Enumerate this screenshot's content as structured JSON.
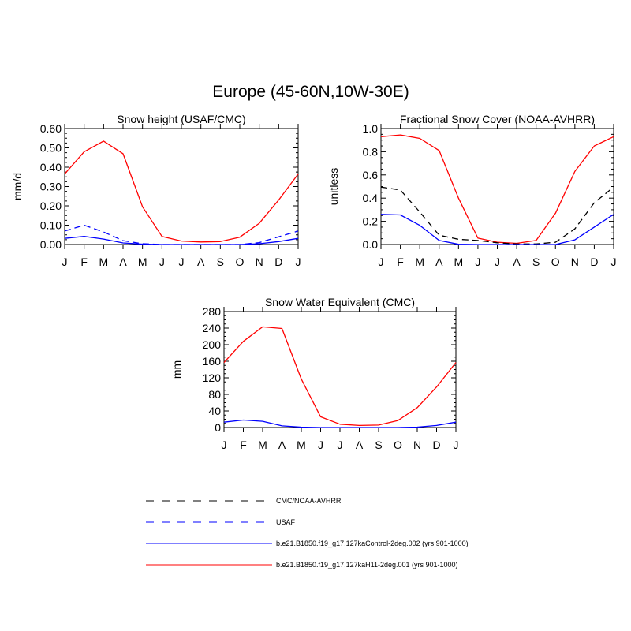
{
  "figure": {
    "title": "Europe (45-60N,10W-30E)"
  },
  "months": [
    "J",
    "F",
    "M",
    "A",
    "M",
    "J",
    "J",
    "A",
    "S",
    "O",
    "N",
    "D",
    "J"
  ],
  "colors": {
    "model_control": "#0000ff",
    "model_h11": "#ff0000",
    "obs_cmc_noaa": "#000000",
    "obs_usaf": "#0000ff"
  },
  "legend": [
    {
      "label": "CMC/NOAA-AVHRR",
      "color": "#000000",
      "dash": true
    },
    {
      "label": "USAF",
      "color": "#0000ff",
      "dash": true
    },
    {
      "label": "b.e21.B1850.f19_g17.127kaControl-2deg.002 (yrs 901-1000)",
      "color": "#0000ff",
      "dash": false
    },
    {
      "label": "b.e21.B1850.f19_g17.127kaH11-2deg.001 (yrs 901-1000)",
      "color": "#ff0000",
      "dash": false
    }
  ],
  "chart_data": [
    {
      "type": "line",
      "title": "Snow height (USAF/CMC)",
      "xlabel": "",
      "ylabel": "mm/d",
      "categories": [
        "J",
        "F",
        "M",
        "A",
        "M",
        "J",
        "J",
        "A",
        "S",
        "O",
        "N",
        "D",
        "J"
      ],
      "ylim": [
        0,
        0.6
      ],
      "yticks": [
        "0.00",
        "0.10",
        "0.20",
        "0.30",
        "0.40",
        "0.50",
        "0.60"
      ],
      "series": [
        {
          "name": "b.e21.B1850.f19_g17.127kaH11-2deg.001 (yrs 901-1000)",
          "color": "#ff0000",
          "dash": false,
          "values": [
            0.365,
            0.48,
            0.535,
            0.47,
            0.195,
            0.042,
            0.018,
            0.013,
            0.015,
            0.038,
            0.11,
            0.23,
            0.365
          ]
        },
        {
          "name": "b.e21.B1850.f19_g17.127kaControl-2deg.002 (yrs 901-1000)",
          "color": "#0000ff",
          "dash": false,
          "values": [
            0.032,
            0.042,
            0.028,
            0.008,
            0.002,
            0.0,
            0.0,
            0.0,
            0.0,
            0.0,
            0.004,
            0.015,
            0.032
          ]
        },
        {
          "name": "USAF",
          "color": "#0000ff",
          "dash": true,
          "values": [
            0.07,
            0.1,
            0.065,
            0.02,
            0.004,
            0.0,
            0.0,
            0.0,
            0.0,
            0.0,
            0.01,
            0.04,
            0.07
          ]
        }
      ]
    },
    {
      "type": "line",
      "title": "Fractional Snow Cover (NOAA-AVHRR)",
      "xlabel": "",
      "ylabel": "unitless",
      "categories": [
        "J",
        "F",
        "M",
        "A",
        "M",
        "J",
        "J",
        "A",
        "S",
        "O",
        "N",
        "D",
        "J"
      ],
      "ylim": [
        0,
        1.0
      ],
      "yticks": [
        "0.0",
        "0.2",
        "0.4",
        "0.6",
        "0.8",
        "1.0"
      ],
      "series": [
        {
          "name": "b.e21.B1850.f19_g17.127kaH11-2deg.001 (yrs 901-1000)",
          "color": "#ff0000",
          "dash": false,
          "values": [
            0.93,
            0.945,
            0.915,
            0.81,
            0.4,
            0.055,
            0.02,
            0.01,
            0.035,
            0.27,
            0.63,
            0.85,
            0.93
          ]
        },
        {
          "name": "CMC/NOAA-AVHRR",
          "color": "#000000",
          "dash": true,
          "values": [
            0.495,
            0.47,
            0.28,
            0.08,
            0.045,
            0.035,
            0.015,
            0.005,
            0.005,
            0.02,
            0.135,
            0.36,
            0.495
          ]
        },
        {
          "name": "b.e21.B1850.f19_g17.127kaControl-2deg.002 (yrs 901-1000)",
          "color": "#0000ff",
          "dash": false,
          "values": [
            0.26,
            0.255,
            0.165,
            0.035,
            0.002,
            0.0,
            0.0,
            0.0,
            0.0,
            0.0,
            0.04,
            0.15,
            0.26
          ]
        }
      ]
    },
    {
      "type": "line",
      "title": "Snow Water Equivalent (CMC)",
      "xlabel": "",
      "ylabel": "mm",
      "categories": [
        "J",
        "F",
        "M",
        "A",
        "M",
        "J",
        "J",
        "A",
        "S",
        "O",
        "N",
        "D",
        "J"
      ],
      "ylim": [
        0,
        280
      ],
      "yticks": [
        "0",
        "40",
        "80",
        "120",
        "160",
        "200",
        "240",
        "280"
      ],
      "series": [
        {
          "name": "b.e21.B1850.f19_g17.127kaH11-2deg.001 (yrs 901-1000)",
          "color": "#ff0000",
          "dash": false,
          "values": [
            157,
            208,
            243,
            239,
            117,
            26,
            8,
            5,
            6,
            17,
            48,
            98,
            157
          ]
        },
        {
          "name": "b.e21.B1850.f19_g17.127kaControl-2deg.002 (yrs 901-1000)",
          "color": "#0000ff",
          "dash": false,
          "values": [
            13,
            18,
            15,
            4,
            1,
            0,
            0,
            0,
            0,
            0,
            1,
            5,
            13
          ]
        }
      ]
    }
  ]
}
